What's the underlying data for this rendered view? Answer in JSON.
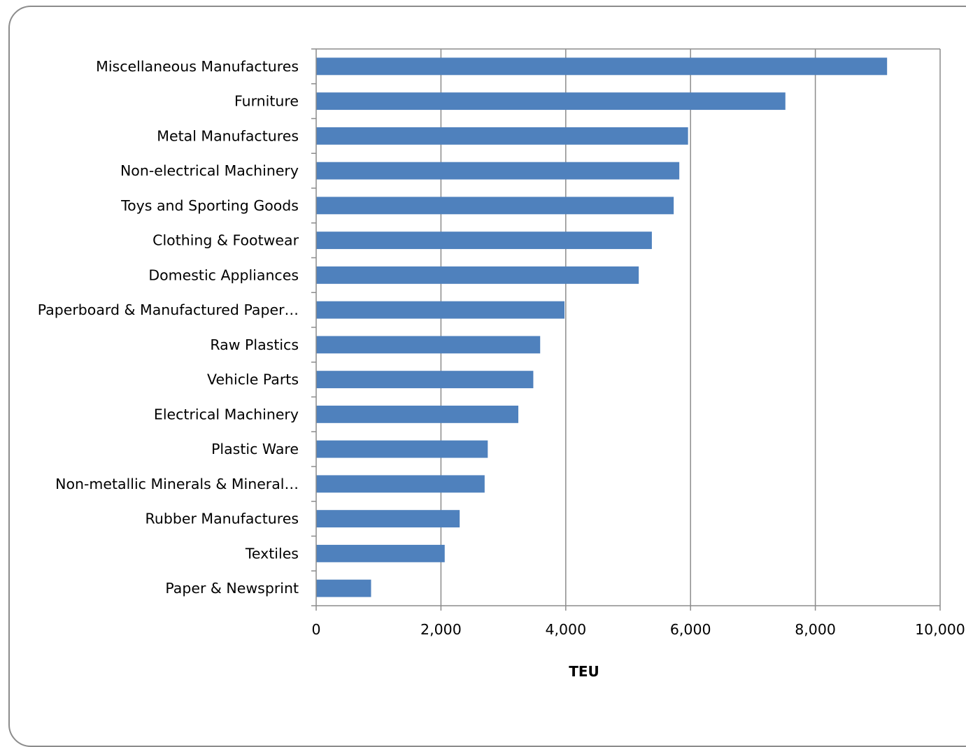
{
  "chart_data": {
    "type": "bar",
    "orientation": "horizontal",
    "categories": [
      "Miscellaneous Manufactures",
      "Furniture",
      "Metal Manufactures",
      "Non-electrical Machinery",
      "Toys and Sporting Goods",
      "Clothing & Footwear",
      "Domestic Appliances",
      "Paperboard & Manufactured Paper…",
      "Raw Plastics",
      "Vehicle Parts",
      "Electrical Machinery",
      "Plastic Ware",
      "Non-metallic Minerals & Mineral…",
      "Rubber Manufactures",
      "Textiles",
      "Paper & Newsprint"
    ],
    "values": [
      9150,
      7520,
      5960,
      5820,
      5730,
      5380,
      5170,
      3980,
      3590,
      3480,
      3240,
      2750,
      2700,
      2300,
      2060,
      880
    ],
    "xlabel": "TEU",
    "ylabel": "",
    "xlim": [
      0,
      10000
    ],
    "xticks": [
      0,
      2000,
      4000,
      6000,
      8000,
      10000
    ],
    "xtick_labels": [
      "0",
      "2,000",
      "4,000",
      "6,000",
      "8,000",
      "10,000"
    ],
    "grid": "vertical",
    "legend": "none",
    "bar_color": "#4f81bd"
  }
}
